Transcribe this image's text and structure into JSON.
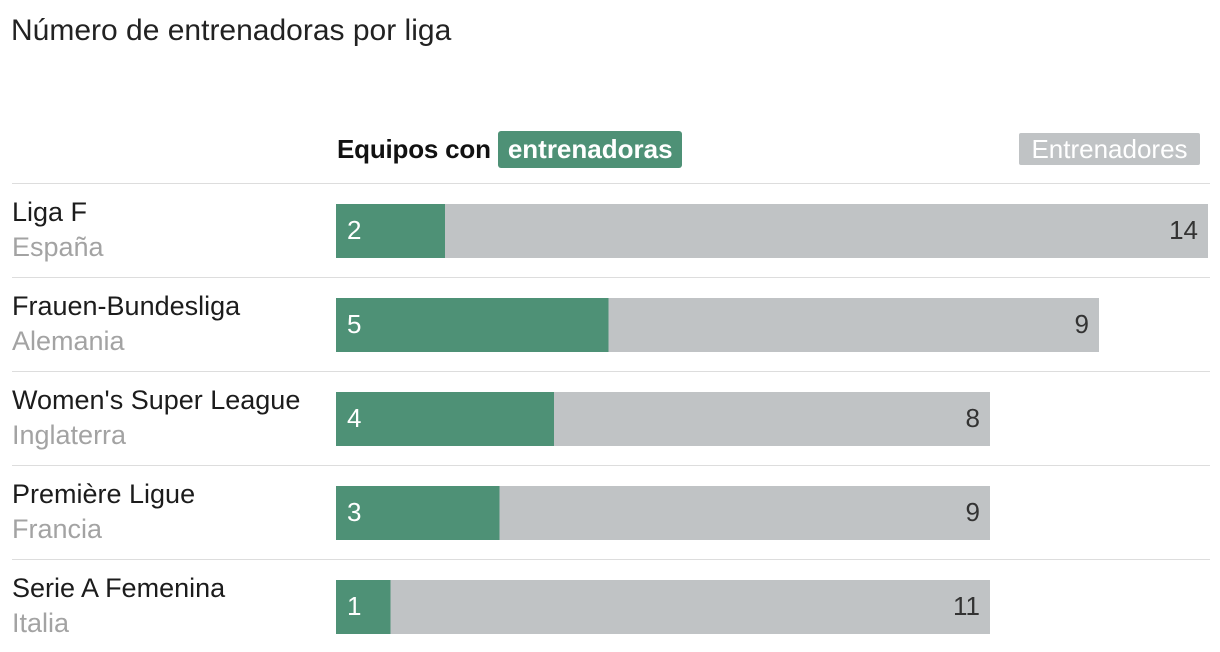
{
  "chart_data": {
    "type": "bar",
    "title": "Número de entrenadoras por liga",
    "legend": {
      "prefix": "Equipos con",
      "women_label": "entrenadoras",
      "men_label": "Entrenadores"
    },
    "categories": [
      "Liga F",
      "Frauen-Bundesliga",
      "Women's Super League",
      "Première Ligue",
      "Serie A Femenina"
    ],
    "countries": [
      "España",
      "Alemania",
      "Inglaterra",
      "Francia",
      "Italia"
    ],
    "series": [
      {
        "name": "entrenadoras",
        "values": [
          2,
          5,
          4,
          3,
          1
        ]
      },
      {
        "name": "Entrenadores",
        "values": [
          14,
          9,
          8,
          9,
          11
        ]
      }
    ],
    "totals": [
      16,
      14,
      12,
      12,
      12
    ],
    "colors": {
      "women": "#4e9176",
      "men": "#c0c3c5",
      "divider": "#dddddd",
      "country": "#a3a3a3"
    },
    "xlim": [
      0,
      16
    ],
    "grid": false,
    "legend_position": "top"
  }
}
